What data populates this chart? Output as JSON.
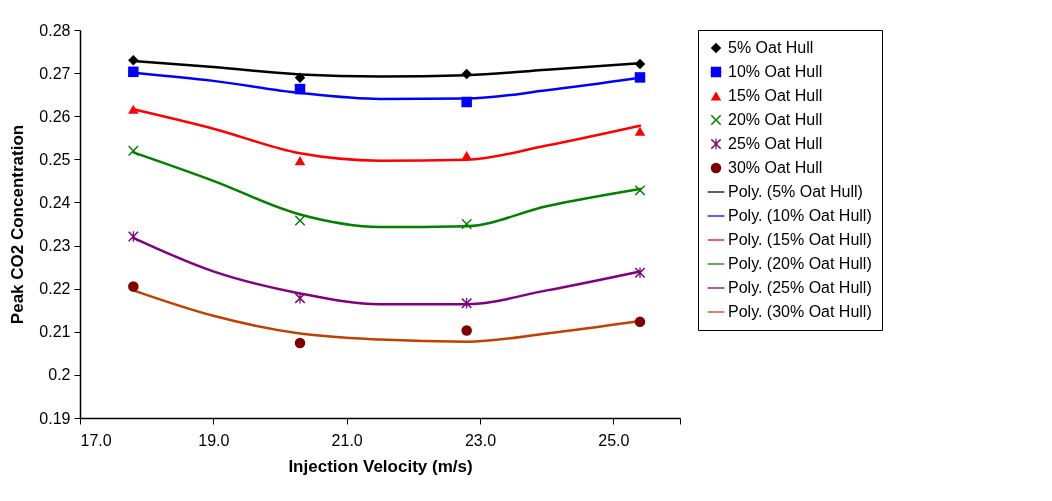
{
  "chart_data": {
    "type": "scatter",
    "xlabel": "Injection Velocity (m/s)",
    "ylabel": "Peak CO2 Concentration",
    "xlim": [
      17,
      26
    ],
    "xticks": [
      {
        "value": 17,
        "label": "17.0"
      },
      {
        "value": 19,
        "label": "19.0"
      },
      {
        "value": 21,
        "label": "21.0"
      },
      {
        "value": 23,
        "label": "23.0"
      },
      {
        "value": 25,
        "label": "25.0"
      },
      {
        "value": 26,
        "label": null
      }
    ],
    "ylim": [
      0.19,
      0.28
    ],
    "yticks": [
      0.19,
      0.2,
      0.21,
      0.22,
      0.23,
      0.24,
      0.25,
      0.26,
      0.27,
      0.28
    ],
    "grid": false,
    "legend": "right",
    "series": [
      {
        "name": "5% Oat Hull",
        "type": "scatter",
        "marker": "diamond",
        "color": "#000000",
        "x": [
          17.8,
          20.3,
          22.8,
          25.4
        ],
        "values": [
          0.273,
          0.2689,
          0.2698,
          0.2721
        ]
      },
      {
        "name": "10% Oat Hull",
        "type": "scatter",
        "marker": "square",
        "color": "#0000ff",
        "x": [
          17.8,
          20.3,
          22.8,
          25.4
        ],
        "values": [
          0.2703,
          0.2663,
          0.2633,
          0.269
        ]
      },
      {
        "name": "15% Oat Hull",
        "type": "scatter",
        "marker": "triangle",
        "color": "#ff0000",
        "x": [
          17.8,
          20.3,
          22.8,
          25.4
        ],
        "values": [
          0.2616,
          0.2497,
          0.2509,
          0.2565
        ]
      },
      {
        "name": "20% Oat Hull",
        "type": "scatter",
        "marker": "cross",
        "color": "#008000",
        "x": [
          17.8,
          20.3,
          22.8,
          25.4
        ],
        "values": [
          0.252,
          0.2358,
          0.235,
          0.2428
        ]
      },
      {
        "name": "25% Oat Hull",
        "type": "scatter",
        "marker": "star",
        "color": "#800080",
        "x": [
          17.8,
          20.3,
          22.8,
          25.4
        ],
        "values": [
          0.2321,
          0.2178,
          0.2166,
          0.2237
        ]
      },
      {
        "name": "30% Oat Hull",
        "type": "scatter",
        "marker": "circle",
        "color": "#800000",
        "x": [
          17.8,
          20.3,
          22.8,
          25.4
        ],
        "values": [
          0.2205,
          0.2074,
          0.2103,
          0.2123
        ]
      },
      {
        "name": "Poly. (5% Oat Hull)",
        "type": "line",
        "color": "#000000",
        "x": [
          17.8,
          19,
          20.3,
          21.5,
          22.8,
          24,
          25.4
        ],
        "values": [
          0.2728,
          0.2714,
          0.2697,
          0.2692,
          0.2695,
          0.2708,
          0.2723
        ]
      },
      {
        "name": "Poly. (10% Oat Hull)",
        "type": "line",
        "color": "#0000ff",
        "x": [
          17.8,
          19,
          20.3,
          21.5,
          22.8,
          24,
          25.4
        ],
        "values": [
          0.2701,
          0.2682,
          0.2654,
          0.264,
          0.2641,
          0.266,
          0.2689
        ]
      },
      {
        "name": "Poly. (15% Oat Hull)",
        "type": "line",
        "color": "#ff0000",
        "x": [
          17.8,
          19,
          20.3,
          21.5,
          22.8,
          24,
          25.4
        ],
        "values": [
          0.2616,
          0.2571,
          0.2514,
          0.2497,
          0.2499,
          0.2532,
          0.2578
        ]
      },
      {
        "name": "Poly. (20% Oat Hull)",
        "type": "line",
        "color": "#008000",
        "x": [
          17.8,
          19,
          20.3,
          21.5,
          22.8,
          24,
          25.4
        ],
        "values": [
          0.2516,
          0.245,
          0.2372,
          0.2343,
          0.2345,
          0.2391,
          0.2431
        ]
      },
      {
        "name": "Poly. (25% Oat Hull)",
        "type": "line",
        "color": "#800080",
        "x": [
          17.8,
          19,
          20.3,
          21.5,
          22.8,
          24,
          25.4
        ],
        "values": [
          0.2318,
          0.224,
          0.2189,
          0.2164,
          0.2164,
          0.2196,
          0.224
        ]
      },
      {
        "name": "Poly. (30% Oat Hull)",
        "type": "line",
        "color": "#c04000",
        "x": [
          17.8,
          19,
          20.3,
          21.5,
          22.8,
          24,
          25.4
        ],
        "values": [
          0.2196,
          0.2137,
          0.2096,
          0.2082,
          0.2077,
          0.2096,
          0.2125
        ]
      }
    ]
  }
}
